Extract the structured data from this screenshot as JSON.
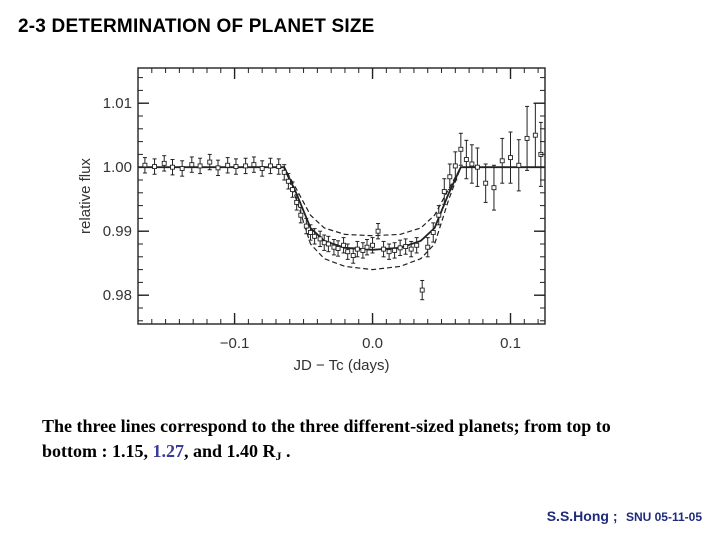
{
  "slide": {
    "title": "2-3 DETERMINATION OF PLANET SIZE"
  },
  "caption": {
    "line1": "The three lines correspond to the three different-sized planets; from top to",
    "line2_prefix": "bottom : 1.15, ",
    "line2_highlight": "1.27",
    "line2_middle": ", and 1.40 R",
    "line2_sub": "J",
    "line2_suffix": " ."
  },
  "footer": {
    "author": "S.S.Hong ;",
    "org": "SNU 05-11-05"
  },
  "colors": {
    "highlight": "#3b3b9a",
    "footer": "#1f2a7a",
    "plot": "#222222"
  },
  "chart_data": {
    "type": "scatter",
    "xlabel": "JD − Tc (days)",
    "ylabel": "relative flux",
    "xlim": [
      -0.17,
      0.125
    ],
    "ylim": [
      0.9755,
      1.0155
    ],
    "x_ticks": [
      -0.1,
      0.0,
      0.1
    ],
    "x_tick_labels": [
      "−0.1",
      "0.0",
      "0.1"
    ],
    "y_ticks": [
      0.98,
      0.99,
      1.0,
      1.01
    ],
    "y_tick_labels": [
      "0.98",
      "0.99",
      "1.00",
      "1.01"
    ],
    "series": [
      {
        "kind": "points_with_errorbars",
        "x": [
          -0.165,
          -0.158,
          -0.151,
          -0.145,
          -0.138,
          -0.131,
          -0.125,
          -0.118,
          -0.112,
          -0.105,
          -0.099,
          -0.092,
          -0.086,
          -0.08,
          -0.074,
          -0.068,
          -0.064,
          -0.061,
          -0.058,
          -0.055,
          -0.052,
          -0.048,
          -0.045,
          -0.042,
          -0.038,
          -0.035,
          -0.032,
          -0.028,
          -0.025,
          -0.021,
          -0.018,
          -0.014,
          -0.011,
          -0.007,
          -0.004,
          0.0,
          0.004,
          0.008,
          0.012,
          0.016,
          0.02,
          0.024,
          0.028,
          0.032,
          0.036,
          0.04,
          0.044,
          0.048,
          0.052,
          0.056,
          0.06,
          0.064,
          0.068,
          0.072,
          0.076,
          0.082,
          0.088,
          0.094,
          0.1,
          0.106,
          0.112,
          0.118,
          0.122
        ],
        "y": [
          1.0003,
          1.0001,
          1.0006,
          1.0,
          0.9998,
          1.0004,
          1.0002,
          1.0008,
          0.9999,
          1.0003,
          1.0001,
          1.0002,
          1.0004,
          0.9998,
          1.0002,
          1.0001,
          0.9992,
          0.9978,
          0.9965,
          0.9945,
          0.9925,
          0.9908,
          0.9898,
          0.9892,
          0.9888,
          0.9882,
          0.988,
          0.9875,
          0.9873,
          0.9878,
          0.9868,
          0.9862,
          0.9872,
          0.987,
          0.9875,
          0.9878,
          0.99,
          0.9872,
          0.9868,
          0.987,
          0.9874,
          0.9876,
          0.9872,
          0.9878,
          0.9808,
          0.9875,
          0.9898,
          0.9925,
          0.9962,
          0.9985,
          1.0002,
          1.0028,
          1.0012,
          1.0005,
          1.0,
          0.9975,
          0.9968,
          1.001,
          1.0015,
          1.0003,
          1.0045,
          1.005,
          1.002
        ],
        "err": [
          0.0012,
          0.0012,
          0.0012,
          0.0012,
          0.0012,
          0.0012,
          0.0012,
          0.0012,
          0.0012,
          0.0012,
          0.0012,
          0.0012,
          0.0012,
          0.0012,
          0.0012,
          0.0012,
          0.0012,
          0.0012,
          0.0012,
          0.0012,
          0.0012,
          0.0012,
          0.0012,
          0.0012,
          0.0012,
          0.0012,
          0.0012,
          0.0012,
          0.0012,
          0.0012,
          0.0012,
          0.0012,
          0.0012,
          0.0012,
          0.0012,
          0.0012,
          0.0012,
          0.0012,
          0.0012,
          0.0012,
          0.0012,
          0.0012,
          0.0012,
          0.0012,
          0.0015,
          0.0015,
          0.0015,
          0.0015,
          0.002,
          0.002,
          0.0022,
          0.0025,
          0.003,
          0.003,
          0.003,
          0.003,
          0.0035,
          0.0035,
          0.004,
          0.004,
          0.005,
          0.005,
          0.005
        ]
      },
      {
        "kind": "model_line",
        "style": "dashed",
        "x": [
          -0.17,
          -0.064,
          -0.055,
          -0.045,
          -0.035,
          -0.02,
          0.0,
          0.02,
          0.035,
          0.045,
          0.055,
          0.064,
          0.125
        ],
        "y": [
          1.0,
          1.0,
          0.9965,
          0.9925,
          0.9905,
          0.9895,
          0.9893,
          0.9895,
          0.9905,
          0.9925,
          0.9965,
          1.0,
          1.0
        ]
      },
      {
        "kind": "model_line",
        "style": "solid",
        "x": [
          -0.17,
          -0.064,
          -0.055,
          -0.045,
          -0.035,
          -0.02,
          0.0,
          0.02,
          0.035,
          0.045,
          0.055,
          0.064,
          0.125
        ],
        "y": [
          1.0,
          1.0,
          0.9958,
          0.9905,
          0.9885,
          0.9874,
          0.9871,
          0.9874,
          0.9885,
          0.9905,
          0.9958,
          1.0,
          1.0
        ]
      },
      {
        "kind": "model_line",
        "style": "dashed",
        "x": [
          -0.17,
          -0.064,
          -0.055,
          -0.045,
          -0.035,
          -0.02,
          0.0,
          0.02,
          0.035,
          0.045,
          0.055,
          0.064,
          0.125
        ],
        "y": [
          1.0,
          1.0,
          0.9948,
          0.988,
          0.9857,
          0.9845,
          0.984,
          0.9845,
          0.9857,
          0.988,
          0.9948,
          1.0,
          1.0
        ]
      }
    ]
  }
}
